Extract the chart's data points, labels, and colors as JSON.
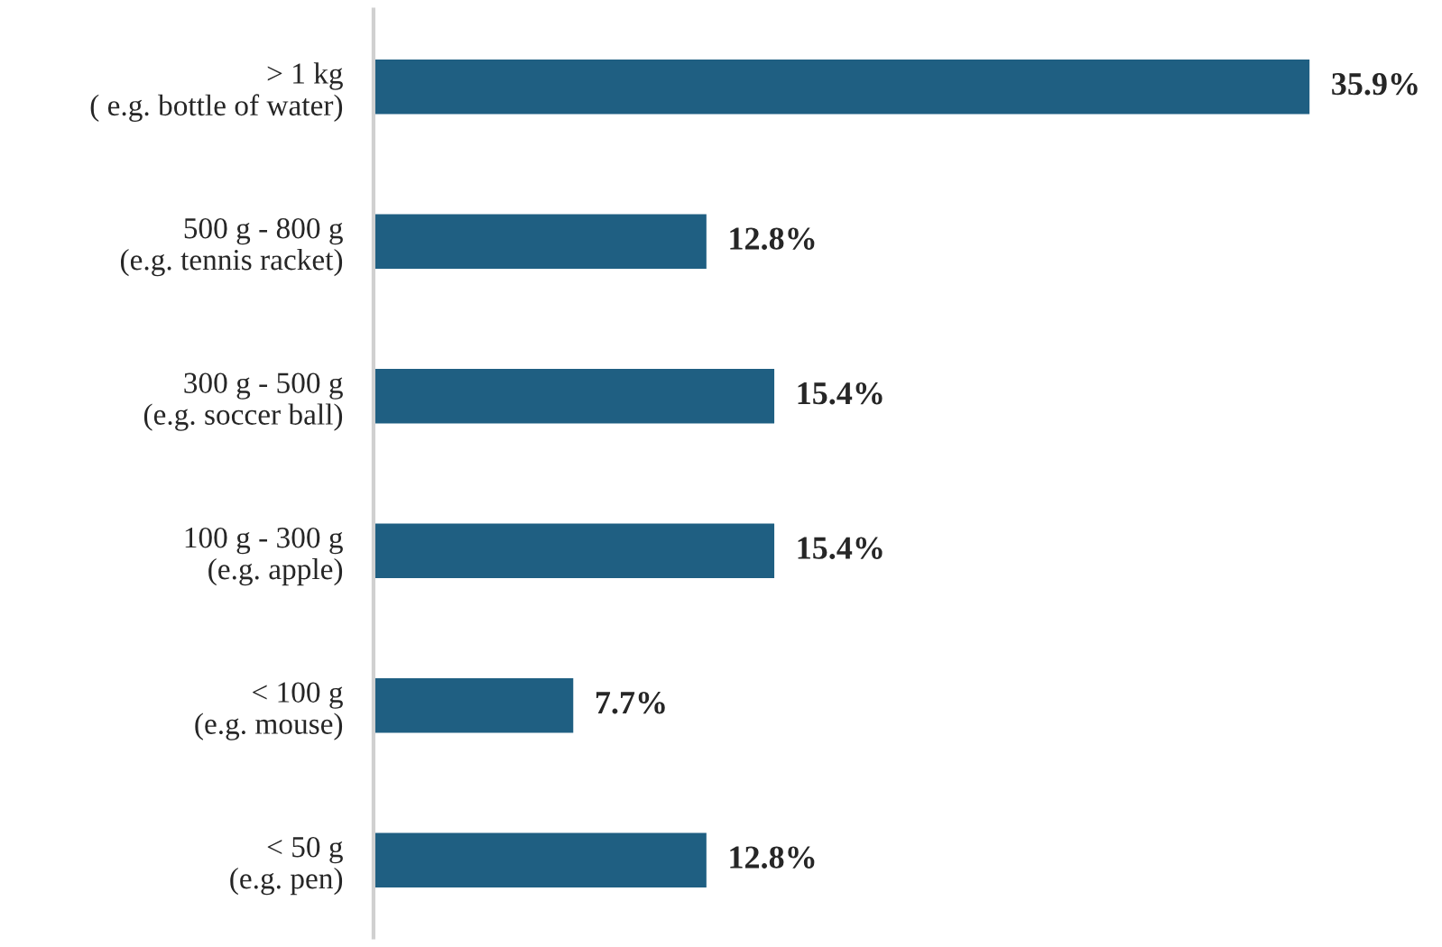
{
  "chart_data": {
    "type": "bar",
    "orientation": "horizontal",
    "categories": [
      "> 1 kg\n( e.g. bottle of water)",
      "500 g - 800 g\n(e.g. tennis racket)",
      "300 g - 500 g\n(e.g. soccer ball)",
      "100 g - 300 g\n(e.g. apple)",
      "< 100 g\n(e.g. mouse)",
      "< 50 g\n(e.g. pen)"
    ],
    "values": [
      35.9,
      12.8,
      15.4,
      15.4,
      7.7,
      12.8
    ],
    "value_labels": [
      "35.9%",
      "12.8%",
      "15.4%",
      "15.4%",
      "7.7%",
      "12.8%"
    ],
    "color": "#1f5f82",
    "tick_labels": "y",
    "grid": false,
    "legend": false
  }
}
